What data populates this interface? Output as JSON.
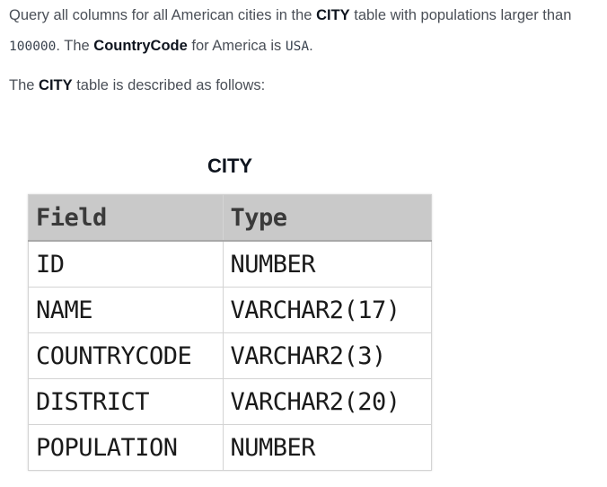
{
  "description": {
    "line1_pre": "Query all columns for all American cities in the ",
    "line1_table": "CITY",
    "line1_post": " table with populations larger than",
    "line2_number": "100000",
    "line2_mid": ". The ",
    "line2_field": "CountryCode",
    "line2_mid2": " for America is ",
    "line2_value": "USA",
    "line2_end": ".",
    "line3_pre": "The ",
    "line3_table": "CITY",
    "line3_post": " table is described as follows:"
  },
  "table": {
    "title": "CITY",
    "headers": {
      "field": "Field",
      "type": "Type"
    },
    "rows": [
      {
        "field": "ID",
        "type": "NUMBER"
      },
      {
        "field": "NAME",
        "type": "VARCHAR2(17)"
      },
      {
        "field": "COUNTRYCODE",
        "type": "VARCHAR2(3)"
      },
      {
        "field": "DISTRICT",
        "type": "VARCHAR2(20)"
      },
      {
        "field": "POPULATION",
        "type": "NUMBER"
      }
    ]
  }
}
